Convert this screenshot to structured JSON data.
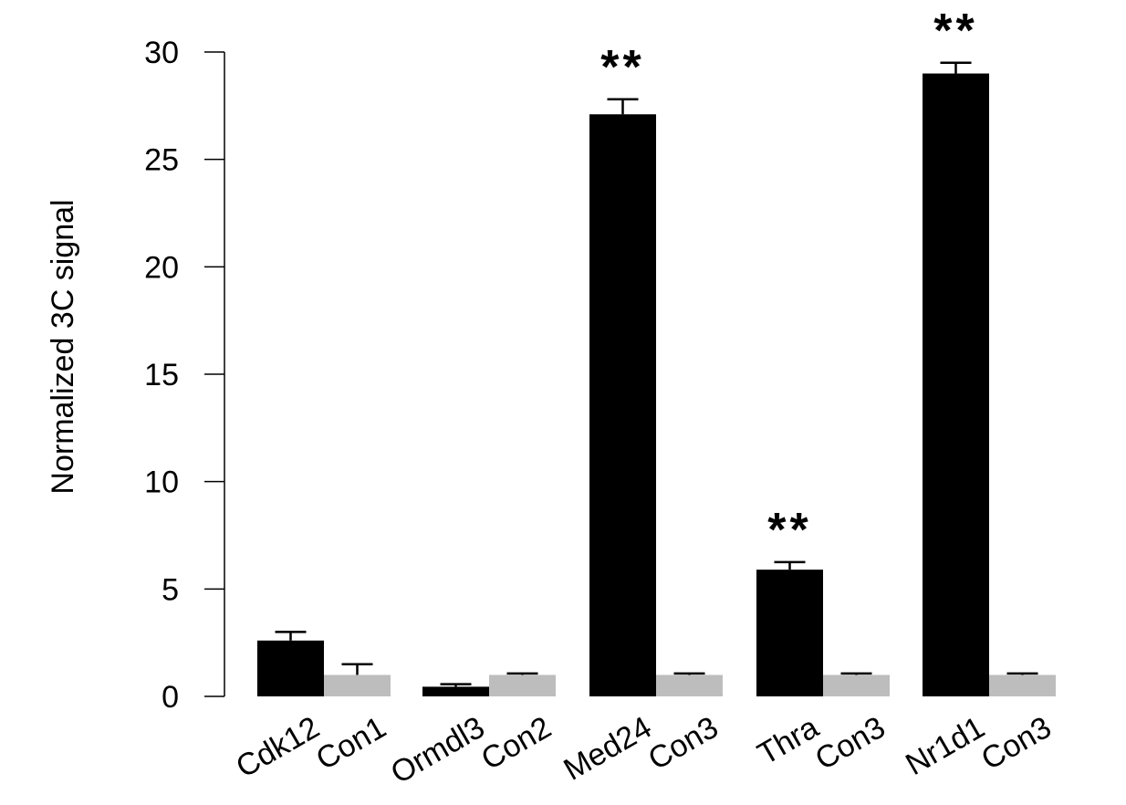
{
  "chart_data": {
    "type": "bar",
    "title": "",
    "xlabel": "",
    "ylabel": "Normalized 3C signal",
    "ylim": [
      0,
      30
    ],
    "yticks": [
      0,
      5,
      10,
      15,
      20,
      25,
      30
    ],
    "grid": false,
    "legend": "none",
    "groups": [
      {
        "bars": [
          {
            "label": "Cdk12",
            "value": 2.6,
            "error": 0.4,
            "color": "#000000"
          },
          {
            "label": "Con1",
            "value": 1.0,
            "error": 0.5,
            "color": "#bdbdbd"
          }
        ],
        "significance": ""
      },
      {
        "bars": [
          {
            "label": "Ormdl3",
            "value": 0.45,
            "error": 0.12,
            "color": "#000000"
          },
          {
            "label": "Con2",
            "value": 1.0,
            "error": 0.07,
            "color": "#bdbdbd"
          }
        ],
        "significance": ""
      },
      {
        "bars": [
          {
            "label": "Med24",
            "value": 27.1,
            "error": 0.7,
            "color": "#000000"
          },
          {
            "label": "Con3",
            "value": 1.0,
            "error": 0.07,
            "color": "#bdbdbd"
          }
        ],
        "significance": "**"
      },
      {
        "bars": [
          {
            "label": "Thra",
            "value": 5.9,
            "error": 0.35,
            "color": "#000000"
          },
          {
            "label": "Con3",
            "value": 1.0,
            "error": 0.07,
            "color": "#bdbdbd"
          }
        ],
        "significance": "**"
      },
      {
        "bars": [
          {
            "label": "Nr1d1",
            "value": 29.0,
            "error": 0.5,
            "color": "#000000"
          },
          {
            "label": "Con3",
            "value": 1.0,
            "error": 0.07,
            "color": "#bdbdbd"
          }
        ],
        "significance": "**"
      }
    ]
  }
}
